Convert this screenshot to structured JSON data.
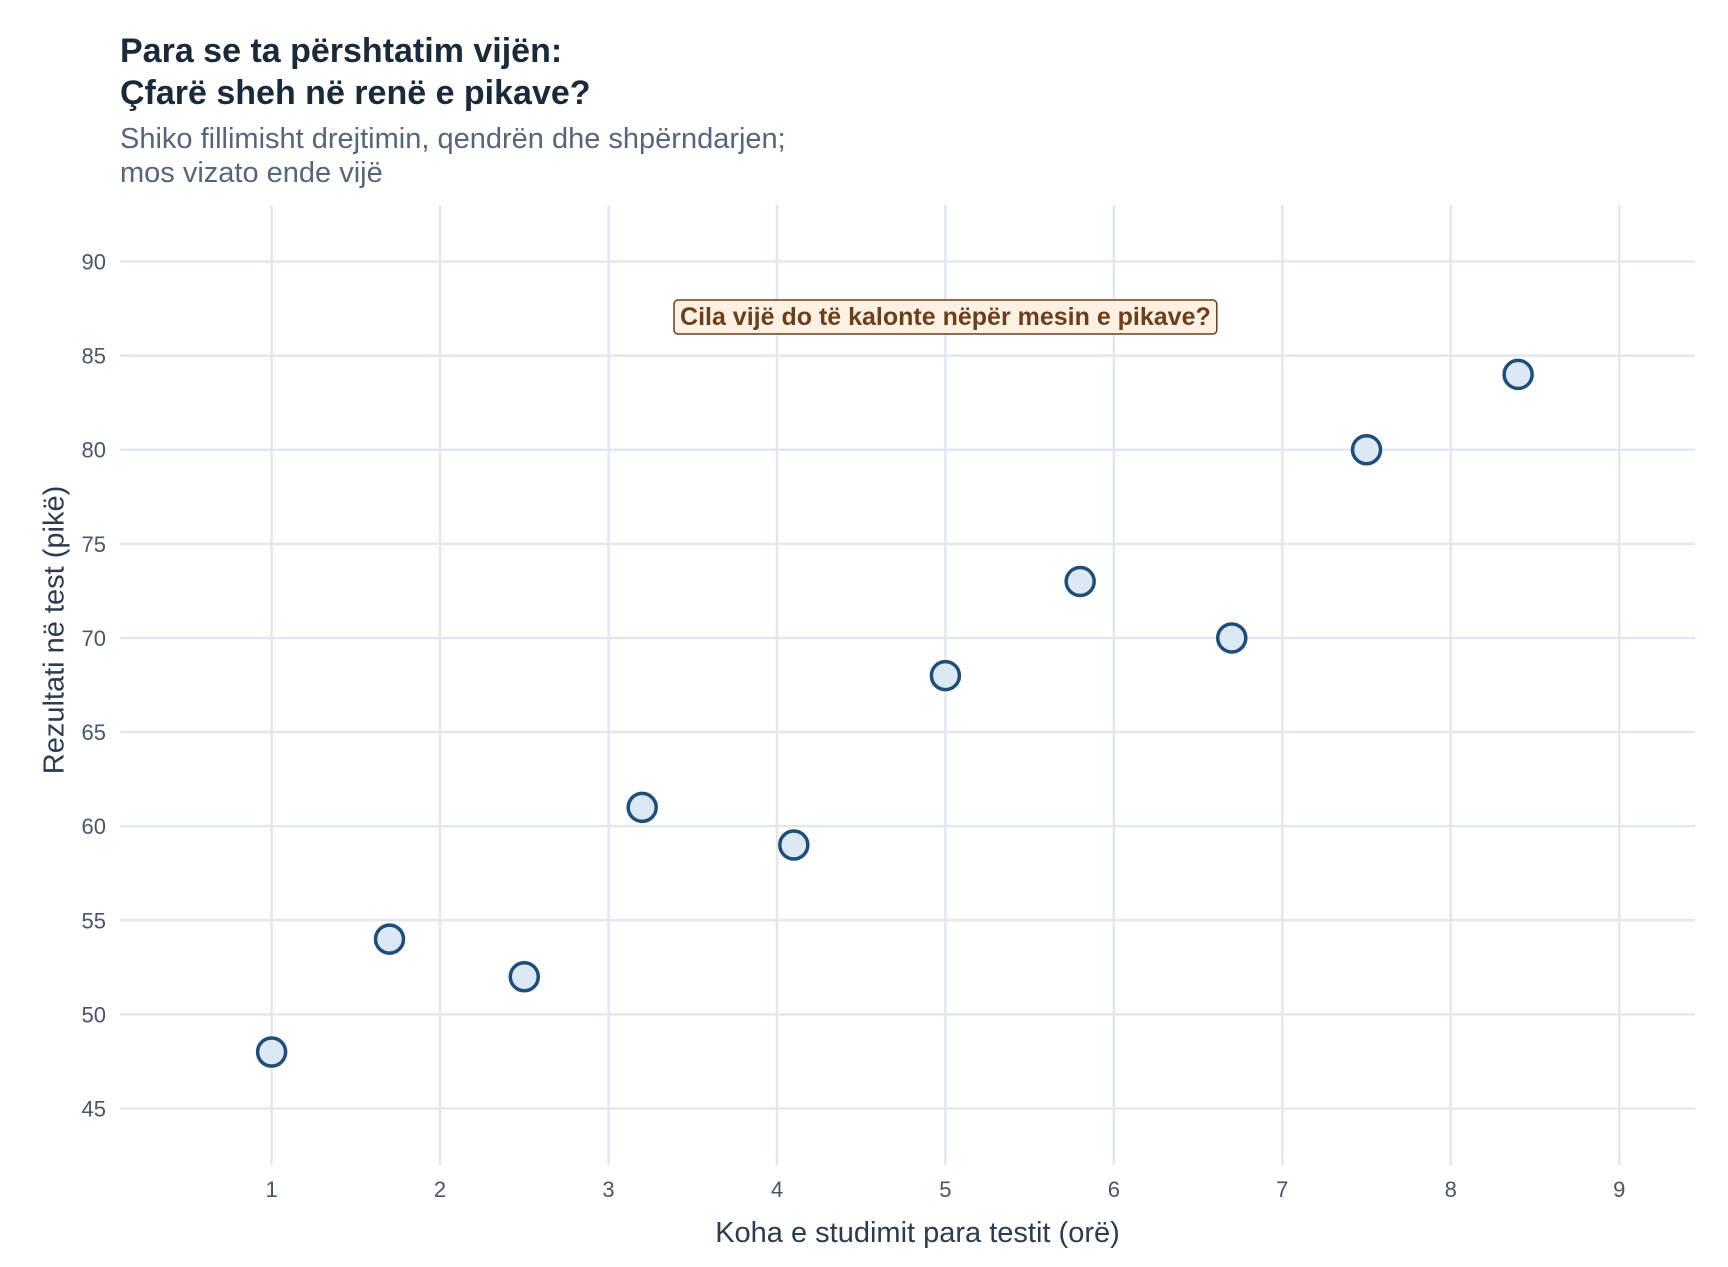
{
  "chart_data": {
    "type": "scatter",
    "title": [
      "Para se ta përshtatim vijën:",
      "Çfarë sheh në renë e pikave?"
    ],
    "subtitle": [
      "Shiko fillimisht drejtimin, qendrën dhe shpërndarjen;",
      "mos vizato ende vijë"
    ],
    "xlabel": "Koha e studimit para testit (orë)",
    "ylabel": "Rezultati në test (pikë)",
    "xlim": [
      0.1,
      9.45
    ],
    "ylim": [
      42,
      93
    ],
    "x_ticks": [
      1,
      2,
      3,
      4,
      5,
      6,
      7,
      8,
      9
    ],
    "y_ticks": [
      45,
      50,
      55,
      60,
      65,
      70,
      75,
      80,
      85,
      90
    ],
    "grid": true,
    "points": [
      {
        "x": 1.0,
        "y": 48
      },
      {
        "x": 1.7,
        "y": 54
      },
      {
        "x": 2.5,
        "y": 52
      },
      {
        "x": 3.2,
        "y": 61
      },
      {
        "x": 4.1,
        "y": 59
      },
      {
        "x": 5.0,
        "y": 68
      },
      {
        "x": 5.8,
        "y": 73
      },
      {
        "x": 6.7,
        "y": 70
      },
      {
        "x": 7.5,
        "y": 80
      },
      {
        "x": 8.4,
        "y": 84
      }
    ],
    "annotation": {
      "text": "Cila vijë do të kalonte nëpër mesin e pikave?",
      "x": 5.0,
      "y": 87.1
    },
    "colors": {
      "point_fill": "#dce9f4",
      "point_stroke": "#1f4e79",
      "grid": "#e3e8ee",
      "axis_text": "#4a5568",
      "annotation_fill": "#fdf1e3",
      "annotation_stroke": "#6b3e1c",
      "annotation_text": "#6b3e1c"
    }
  }
}
